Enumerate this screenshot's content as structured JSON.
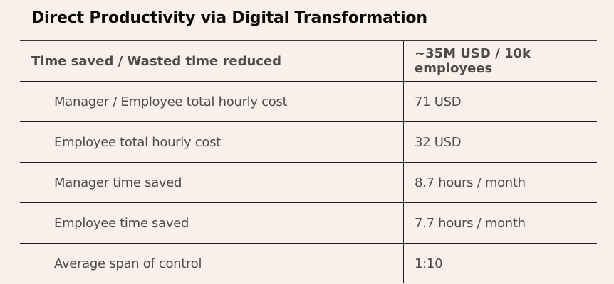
{
  "title": "Direct Productivity via Digital Transformation",
  "table": {
    "header": {
      "label": "Time saved / Wasted time reduced",
      "value": "~35M USD / 10k employees"
    },
    "rows": [
      {
        "label": "Manager / Employee total hourly cost",
        "value": "71 USD"
      },
      {
        "label": "Employee total hourly cost",
        "value": "32 USD"
      },
      {
        "label": "Manager time saved",
        "value": "8.7 hours / month"
      },
      {
        "label": "Employee time saved",
        "value": "7.7 hours / month"
      },
      {
        "label": "Average span of control",
        "value": "1:10"
      }
    ]
  },
  "colors": {
    "background": "#f9f0eb",
    "title": "#0a0a0a",
    "text": "#4e4c4b",
    "rule": "#1c1c1c"
  }
}
